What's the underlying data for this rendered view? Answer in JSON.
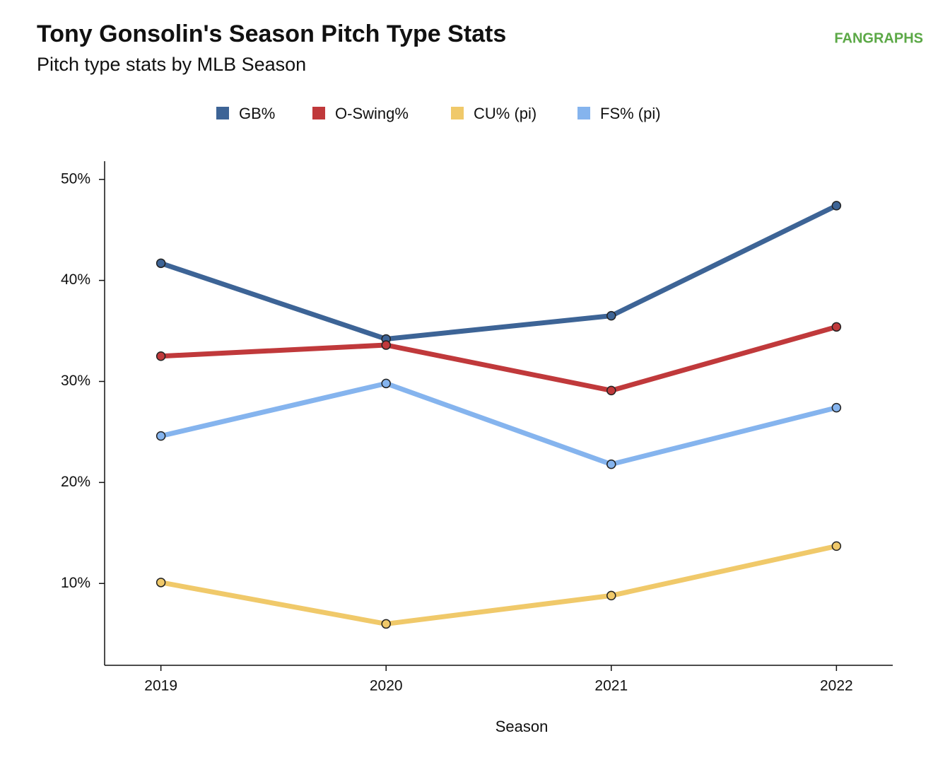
{
  "chart_data": {
    "type": "line",
    "title": "Tony Gonsolin's Season Pitch Type Stats",
    "subtitle": "Pitch type stats by MLB Season",
    "logo": "FANGRAPHS",
    "x_label": "Season",
    "x": [
      2019,
      2020,
      2021,
      2022
    ],
    "series": [
      {
        "name": "GB%",
        "color": "#3d6496",
        "values": [
          41.7,
          34.2,
          36.5,
          47.4
        ]
      },
      {
        "name": "O-Swing%",
        "color": "#c0393b",
        "values": [
          32.5,
          33.6,
          29.1,
          35.4
        ]
      },
      {
        "name": "CU% (pi)",
        "color": "#f0c96a",
        "values": [
          10.1,
          6.0,
          8.8,
          13.7
        ]
      },
      {
        "name": "FS% (pi)",
        "color": "#85b4ee",
        "values": [
          24.6,
          29.8,
          21.8,
          27.4
        ]
      }
    ],
    "xlim": [
      2018.75,
      2022.25
    ],
    "xticks": [
      2019,
      2020,
      2021,
      2022
    ],
    "ylim": [
      1.9,
      51.8
    ],
    "yticks": [
      {
        "value": 10,
        "label": "10%"
      },
      {
        "value": 20,
        "label": "20%"
      },
      {
        "value": 30,
        "label": "30%"
      },
      {
        "value": 40,
        "label": "40%"
      },
      {
        "value": 50,
        "label": "50%"
      }
    ]
  }
}
